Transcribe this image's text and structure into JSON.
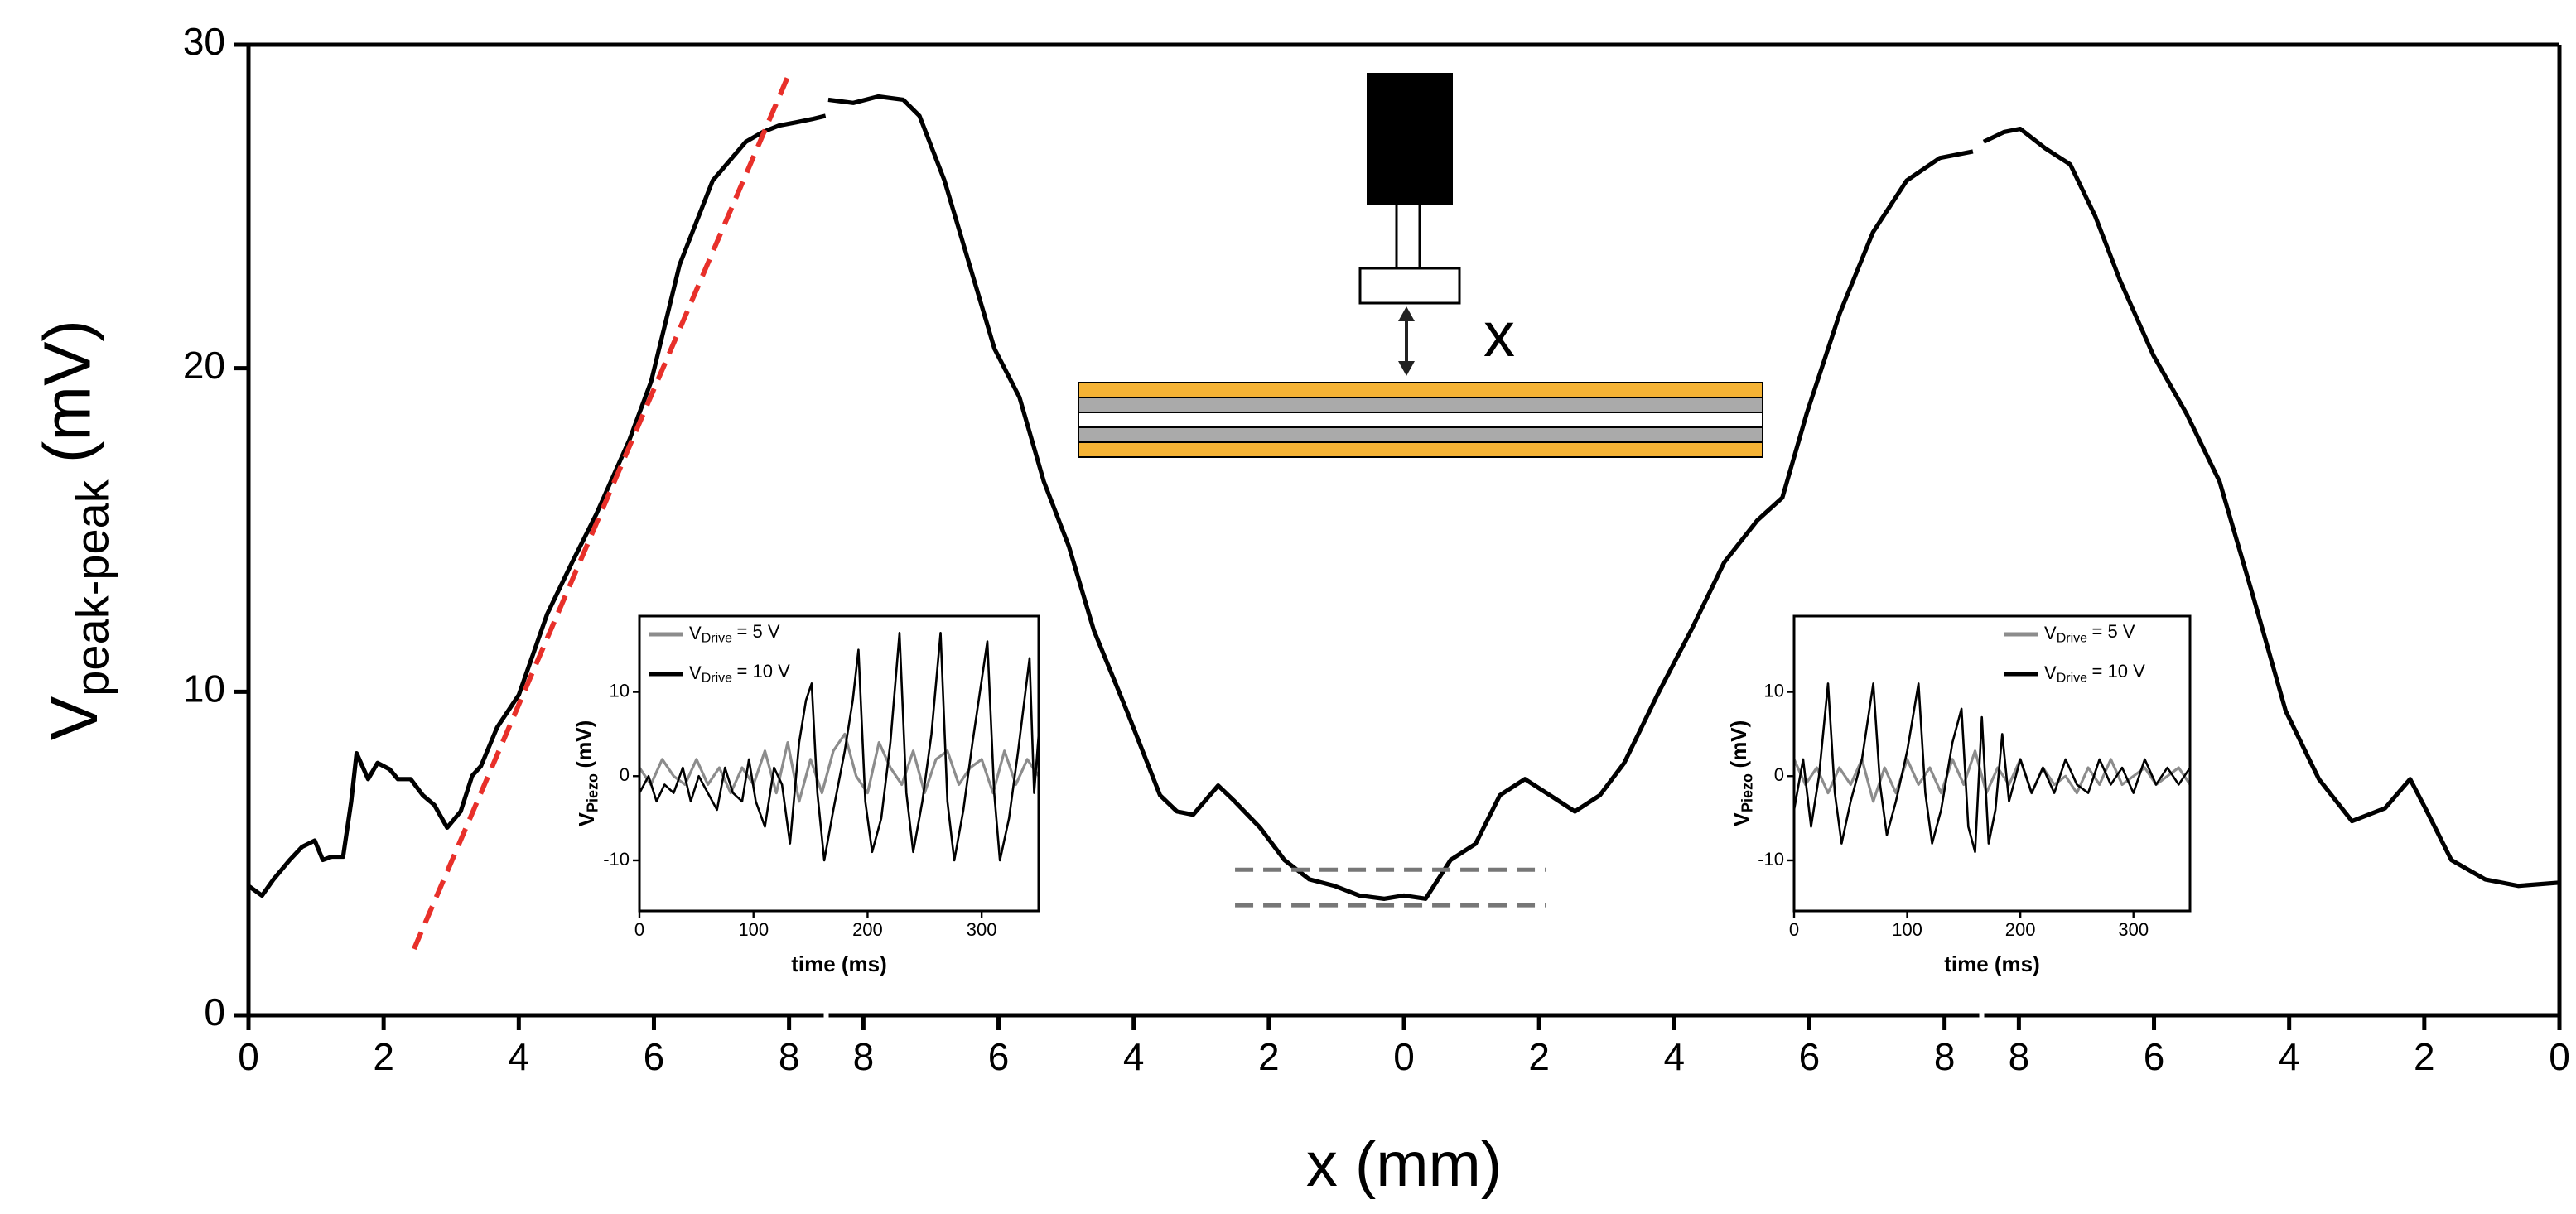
{
  "chart_data": [
    {
      "type": "line",
      "xlim": [
        0,
        8.55
      ],
      "xticks": [
        0,
        2,
        4,
        6,
        8
      ],
      "ylim": [
        0,
        30
      ],
      "yticks": [
        0,
        10,
        20,
        30
      ],
      "ylabel": {
        "main": "V",
        "sub": "peak-peak",
        "rest": "(mV)"
      },
      "color": "#000000",
      "x": [
        0,
        0.2,
        0.37,
        0.61,
        0.79,
        0.98,
        1.1,
        1.23,
        1.4,
        1.52,
        1.6,
        1.77,
        1.91,
        2.09,
        2.21,
        2.4,
        2.58,
        2.75,
        2.94,
        3.14,
        3.31,
        3.44,
        3.68,
        4.0,
        4.42,
        4.79,
        5.15,
        5.64,
        5.96,
        6.38,
        6.87,
        7.36,
        7.61,
        7.85,
        8.1,
        8.34,
        8.54
      ],
      "values": [
        4.0,
        3.7,
        4.2,
        4.8,
        5.2,
        5.4,
        4.8,
        4.9,
        4.9,
        6.6,
        8.1,
        7.3,
        7.8,
        7.6,
        7.3,
        7.3,
        6.8,
        6.5,
        5.8,
        6.3,
        7.4,
        7.7,
        8.9,
        9.9,
        12.4,
        14.0,
        15.5,
        17.8,
        19.6,
        23.2,
        25.8,
        27.0,
        27.3,
        27.5,
        27.6,
        27.7,
        27.8
      ],
      "fit": {
        "x": [
          2.45,
          8.0
        ],
        "y": [
          2.05,
          29.1
        ],
        "color": "#e8302a"
      }
    },
    {
      "type": "line",
      "xlim": [
        -8.55,
        8.55
      ],
      "ylim": [
        0,
        30
      ],
      "xlabel": "x (mm)",
      "color": "#000000",
      "xticks": [
        {
          "value": -8,
          "label": "8"
        },
        {
          "value": -6,
          "label": "6"
        },
        {
          "value": -4,
          "label": "4"
        },
        {
          "value": -2,
          "label": "2"
        },
        0,
        2,
        4,
        6,
        8
      ],
      "x": [
        -8.52,
        -8.15,
        -7.78,
        -7.41,
        -7.17,
        -6.8,
        -6.43,
        -6.06,
        -5.69,
        -5.33,
        -4.96,
        -4.59,
        -4.1,
        -3.61,
        -3.36,
        -3.12,
        -2.75,
        -2.5,
        -2.13,
        -1.77,
        -1.4,
        -1.03,
        -0.66,
        -0.29,
        0,
        0.32,
        0.69,
        1.06,
        1.42,
        1.79,
        2.16,
        2.53,
        2.9,
        3.26,
        3.75,
        4.25,
        4.74,
        5.23,
        5.6,
        5.96,
        6.45,
        6.94,
        7.44,
        7.93,
        8.42
      ],
      "values": [
        28.3,
        28.2,
        28.4,
        28.3,
        27.8,
        25.8,
        23.2,
        20.6,
        19.1,
        16.5,
        14.5,
        11.9,
        9.4,
        6.8,
        6.3,
        6.2,
        7.1,
        6.6,
        5.8,
        4.8,
        4.2,
        4.0,
        3.7,
        3.6,
        3.7,
        3.6,
        4.8,
        5.3,
        6.8,
        7.3,
        6.8,
        6.3,
        6.8,
        7.8,
        9.9,
        11.9,
        14.0,
        15.3,
        16.0,
        18.6,
        21.7,
        24.2,
        25.8,
        26.5,
        26.7
      ],
      "reference_lines": [
        {
          "y": 4.5,
          "x": [
            -2.5,
            2.1
          ],
          "color": "#777777"
        },
        {
          "y": 3.4,
          "x": [
            -2.5,
            2.1
          ],
          "color": "#777777"
        }
      ]
    },
    {
      "type": "line",
      "xlim": [
        8.55,
        0
      ],
      "xticks": [
        8,
        6,
        4,
        2,
        0
      ],
      "ylim": [
        0,
        30
      ],
      "color": "#000000",
      "x": [
        8.52,
        8.22,
        7.98,
        7.61,
        7.24,
        6.87,
        6.5,
        6.01,
        5.52,
        5.03,
        4.54,
        4.05,
        3.56,
        3.07,
        2.58,
        2.21,
        1.96,
        1.6,
        1.1,
        0.61,
        0
      ],
      "values": [
        27.0,
        27.3,
        27.4,
        26.8,
        26.3,
        24.7,
        22.7,
        20.4,
        18.6,
        16.5,
        13.0,
        9.4,
        7.3,
        6.0,
        6.4,
        7.3,
        6.3,
        4.8,
        4.2,
        4.0,
        4.1
      ]
    },
    {
      "type": "line",
      "xlim": [
        0,
        350
      ],
      "xticks": [
        0,
        100,
        200,
        300
      ],
      "ylim": [
        -16,
        19
      ],
      "yticks": [
        -10,
        0,
        10
      ],
      "xlabel": "time (ms)",
      "ylabel": {
        "main": "V",
        "sub": "Piezo",
        "rest": "(mV)"
      },
      "legend": "upper left",
      "series": [
        {
          "name": {
            "main": "V",
            "sub": "Drive",
            "rest": "= 5 V"
          },
          "color": "#8c8c8c",
          "x": [
            0,
            10,
            20,
            30,
            40,
            50,
            60,
            70,
            80,
            90,
            100,
            110,
            120,
            130,
            140,
            150,
            160,
            170,
            180,
            190,
            200,
            210,
            220,
            230,
            240,
            250,
            260,
            270,
            280,
            290,
            300,
            310,
            320,
            330,
            340,
            350
          ],
          "values": [
            1,
            -1,
            2,
            0,
            -1,
            2,
            -1,
            1,
            -2,
            1,
            -1,
            3,
            -2,
            4,
            -3,
            2,
            -2,
            3,
            5,
            0,
            -2,
            4,
            1,
            -1,
            3,
            -2,
            2,
            3,
            -1,
            1,
            2,
            -2,
            3,
            -1,
            2,
            0
          ]
        },
        {
          "name": {
            "main": "V",
            "sub": "Drive",
            "rest": "= 10 V"
          },
          "color": "#000000",
          "x": [
            0,
            8,
            15,
            22,
            30,
            38,
            45,
            52,
            60,
            68,
            75,
            82,
            90,
            96,
            102,
            110,
            118,
            125,
            132,
            140,
            146,
            151,
            156,
            162,
            170,
            180,
            187,
            192,
            198,
            204,
            212,
            220,
            228,
            234,
            240,
            248,
            256,
            264,
            270,
            276,
            284,
            292,
            305,
            311,
            316,
            324,
            332,
            342,
            346,
            350
          ],
          "values": [
            -2,
            0,
            -3,
            -1,
            -2,
            1,
            -3,
            0,
            -2,
            -4,
            1,
            -2,
            -3,
            2,
            -3,
            -6,
            1,
            -1,
            -8,
            4,
            9,
            11,
            -2,
            -10,
            -4,
            3,
            9,
            15,
            -3,
            -9,
            -5,
            4,
            17,
            -2,
            -9,
            -3,
            5,
            17,
            -3,
            -10,
            -4,
            4,
            16,
            -2,
            -10,
            -5,
            3,
            14,
            -2,
            5
          ]
        }
      ]
    },
    {
      "type": "line",
      "xlim": [
        0,
        350
      ],
      "xticks": [
        0,
        100,
        200,
        300
      ],
      "ylim": [
        -16,
        19
      ],
      "yticks": [
        -10,
        0,
        10
      ],
      "xlabel": "time (ms)",
      "ylabel": {
        "main": "V",
        "sub": "Piezo",
        "rest": "(mV)"
      },
      "legend": "upper right",
      "series": [
        {
          "name": {
            "main": "V",
            "sub": "Drive",
            "rest": "= 5 V"
          },
          "color": "#8c8c8c",
          "x": [
            0,
            10,
            20,
            30,
            40,
            50,
            60,
            70,
            80,
            90,
            100,
            110,
            120,
            130,
            140,
            150,
            160,
            170,
            180,
            190,
            200,
            210,
            220,
            230,
            240,
            250,
            260,
            270,
            280,
            290,
            300,
            310,
            320,
            330,
            340,
            350
          ],
          "values": [
            2,
            -1,
            1,
            -2,
            1,
            -1,
            2,
            -3,
            1,
            -2,
            2,
            -1,
            1,
            -2,
            2,
            -1,
            3,
            -2,
            1,
            -1,
            2,
            -2,
            1,
            -1,
            0,
            -2,
            1,
            -1,
            2,
            -1,
            0,
            1,
            -1,
            0,
            1,
            -1
          ]
        },
        {
          "name": {
            "main": "V",
            "sub": "Drive",
            "rest": "= 10 V"
          },
          "color": "#000000",
          "x": [
            0,
            8,
            15,
            22,
            30,
            36,
            42,
            50,
            60,
            70,
            76,
            82,
            90,
            100,
            110,
            116,
            122,
            130,
            140,
            148,
            154,
            160,
            166,
            172,
            178,
            184,
            190,
            200,
            210,
            220,
            230,
            240,
            250,
            260,
            270,
            280,
            290,
            300,
            310,
            320,
            330,
            340,
            350
          ],
          "values": [
            -4,
            2,
            -6,
            0,
            11,
            -2,
            -8,
            -3,
            2,
            11,
            -1,
            -7,
            -3,
            3,
            11,
            -2,
            -8,
            -4,
            4,
            8,
            -6,
            -9,
            7,
            -8,
            -4,
            5,
            -3,
            2,
            -2,
            1,
            -2,
            2,
            -1,
            -2,
            2,
            -1,
            1,
            -2,
            2,
            -1,
            1,
            -1,
            1
          ]
        }
      ]
    }
  ],
  "diagram": {
    "label": "x"
  }
}
